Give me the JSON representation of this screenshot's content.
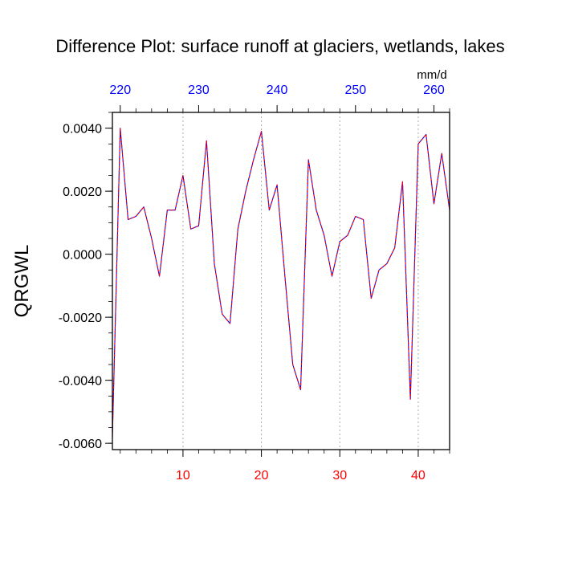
{
  "chart_data": {
    "type": "line",
    "title": "Difference Plot: surface runoff at glaciers, wetlands, lakes",
    "ylabel": "QRGWL",
    "units": "mm/d",
    "xlim": [
      1,
      44
    ],
    "ylim": [
      -0.0062,
      0.0045
    ],
    "x_ticks_bottom": [
      10,
      20,
      30,
      40
    ],
    "x_ticks_top_labels": [
      "220",
      "230",
      "240",
      "250",
      "260"
    ],
    "x_ticks_top_positions": [
      2,
      12,
      22,
      32,
      42
    ],
    "y_ticks": [
      {
        "value": 0.004,
        "label": "0.0040"
      },
      {
        "value": 0.002,
        "label": "0.0020"
      },
      {
        "value": 0.0,
        "label": "0.0000"
      },
      {
        "value": -0.002,
        "label": "-0.0020"
      },
      {
        "value": -0.004,
        "label": "-0.0040"
      },
      {
        "value": -0.006,
        "label": "-0.0060"
      }
    ],
    "grid_x": [
      10,
      20,
      30,
      40
    ],
    "colors": {
      "bottom_axis_labels": "#ff0000",
      "top_axis_labels": "#0000ff",
      "series_red": "#ff0000",
      "series_blue": "#0000ff",
      "grid": "#aaaaaa"
    },
    "series": [
      {
        "x": [
          1,
          2,
          3,
          4,
          5,
          6,
          7,
          8,
          9,
          10,
          11,
          12,
          13,
          14,
          15,
          16,
          17,
          18,
          19,
          20,
          21,
          22,
          23,
          24,
          25,
          26,
          27,
          28,
          29,
          30,
          31,
          32,
          33,
          34,
          35,
          36,
          37,
          38,
          39,
          40,
          41,
          42,
          43,
          44
        ],
        "values": [
          -0.0058,
          0.004,
          0.0011,
          0.0012,
          0.0015,
          0.0005,
          -0.0007,
          0.0014,
          0.0014,
          0.0025,
          0.0008,
          0.0009,
          0.0036,
          -0.0003,
          -0.0019,
          -0.0022,
          0.0008,
          0.002,
          0.003,
          0.0039,
          0.0014,
          0.0022,
          -0.0007,
          -0.0035,
          -0.0043,
          0.003,
          0.0014,
          0.0006,
          -0.0007,
          0.0004,
          0.0006,
          0.0012,
          0.0011,
          -0.0014,
          -0.0005,
          -0.0003,
          0.0002,
          0.0023,
          -0.0046,
          0.0035,
          0.0038,
          0.0016,
          0.0032,
          0.0014
        ]
      }
    ]
  }
}
